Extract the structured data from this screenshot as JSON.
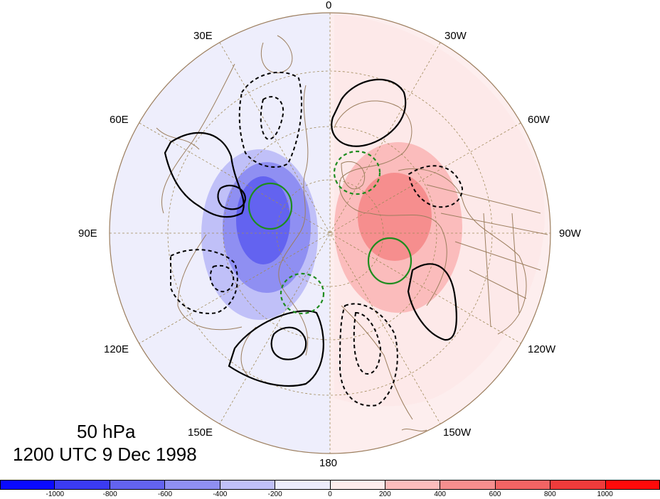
{
  "title": {
    "level": "50 hPa",
    "time": "1200 UTC 9 Dec 1998"
  },
  "longitude_labels": {
    "lon_0": "0",
    "lon_30w": "30W",
    "lon_60w": "60W",
    "lon_90w": "90W",
    "lon_120w": "120W",
    "lon_150w": "150W",
    "lon_180": "180",
    "lon_150e": "150E",
    "lon_120e": "120E",
    "lon_90e": "90E",
    "lon_60e": "60E",
    "lon_30e": "30E"
  },
  "colorbar": {
    "colors": [
      "#0a0aff",
      "#3b3bf2",
      "#6363f0",
      "#8f8ff2",
      "#c0c0f8",
      "#ececfc",
      "#fdecec",
      "#fbbcbc",
      "#f68e8e",
      "#f26464",
      "#ef3b3b",
      "#ff0a0a"
    ],
    "labels": [
      "-1000",
      "-800",
      "-600",
      "-400",
      "-200",
      "0",
      "200",
      "400",
      "600",
      "800",
      "1000"
    ]
  },
  "legend_colors": {
    "contour_black": "#000000",
    "contour_green": "#1e8c1e",
    "coastline": "#9c7e5e",
    "grid": "#a08a5a"
  }
}
